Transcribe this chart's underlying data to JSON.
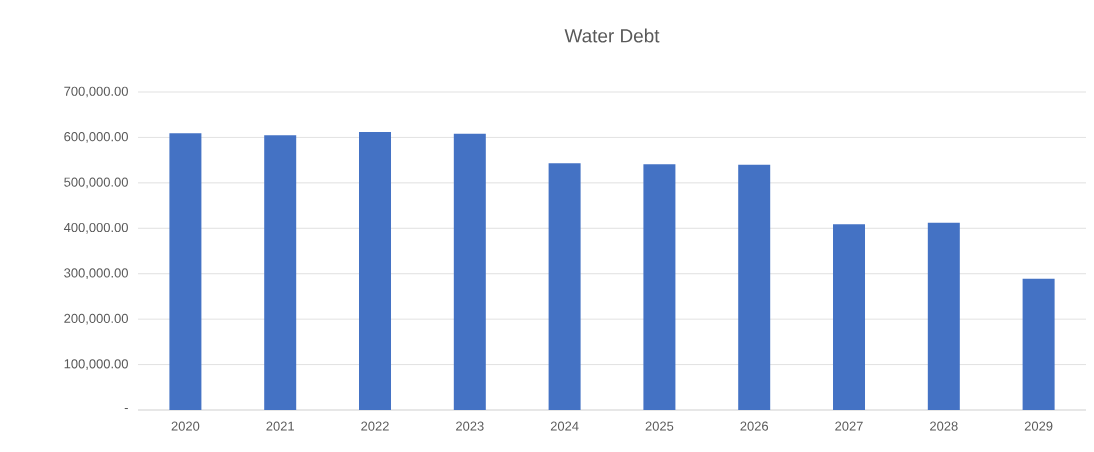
{
  "chart_data": {
    "type": "bar",
    "title": "Water Debt",
    "categories": [
      "2020",
      "2021",
      "2022",
      "2023",
      "2024",
      "2025",
      "2026",
      "2027",
      "2028",
      "2029"
    ],
    "values": [
      609000,
      605000,
      612000,
      608000,
      543000,
      541000,
      540000,
      409000,
      412000,
      289000
    ],
    "color": "#4472c4",
    "ylim": [
      0,
      700000
    ],
    "yticks": [
      {
        "value": 0,
        "label": "-"
      },
      {
        "value": 100000,
        "label": "100,000.00"
      },
      {
        "value": 200000,
        "label": "200,000.00"
      },
      {
        "value": 300000,
        "label": "300,000.00"
      },
      {
        "value": 400000,
        "label": "400,000.00"
      },
      {
        "value": 500000,
        "label": "500,000.00"
      },
      {
        "value": 600000,
        "label": "600,000.00"
      },
      {
        "value": 700000,
        "label": "700,000.00"
      }
    ],
    "grid": "y"
  }
}
